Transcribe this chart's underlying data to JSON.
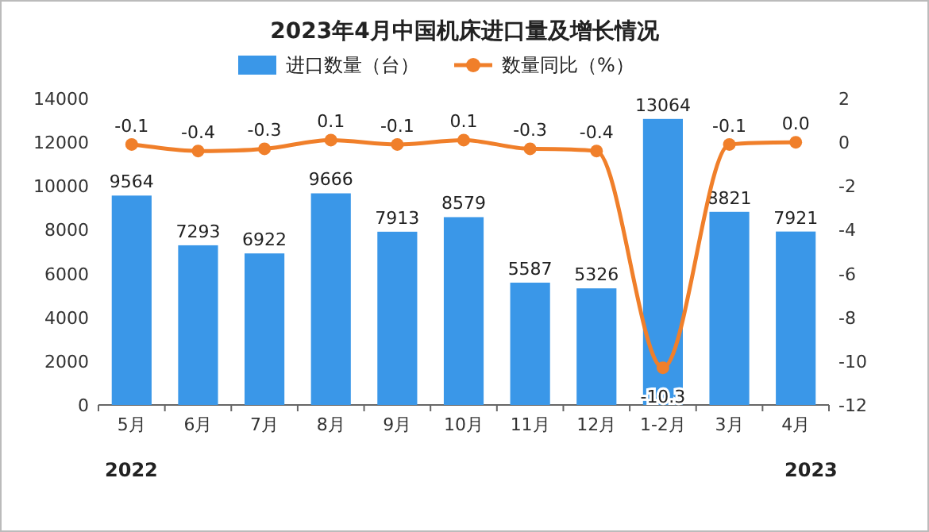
{
  "chart_data": {
    "type": "bar",
    "title": "2023年4月中国机床进口量及增长情况",
    "categories": [
      "5月",
      "6月",
      "7月",
      "8月",
      "9月",
      "10月",
      "11月",
      "12月",
      "1-2月",
      "3月",
      "4月"
    ],
    "series": [
      {
        "name": "进口数量（台）",
        "color": "#3a97e8",
        "values": [
          9564,
          7293,
          6922,
          9666,
          7913,
          8579,
          5587,
          5326,
          13064,
          8821,
          7921
        ]
      },
      {
        "name": "数量同比（%）",
        "type": "line",
        "axis": "y2",
        "color": "#f07f2a",
        "values": [
          -0.1,
          -0.4,
          -0.3,
          0.1,
          -0.1,
          0.1,
          -0.3,
          -0.4,
          -10.3,
          -0.1,
          0.0
        ],
        "value_labels": [
          "-0.1",
          "-0.4",
          "-0.3",
          "0.1",
          "-0.1",
          "0.1",
          "-0.3",
          "-0.4",
          "-10.3",
          "-0.1",
          "0.0"
        ]
      }
    ],
    "ylim": [
      0,
      14000
    ],
    "yticks": [
      0,
      2000,
      4000,
      6000,
      8000,
      10000,
      12000,
      14000
    ],
    "y2lim": [
      -12,
      2
    ],
    "y2ticks": [
      -12,
      -10,
      -8,
      -6,
      -4,
      -2,
      0,
      2
    ],
    "marker": "circle",
    "data_labels": true,
    "legend": "top",
    "annotations": [
      "2022",
      "2023"
    ]
  }
}
